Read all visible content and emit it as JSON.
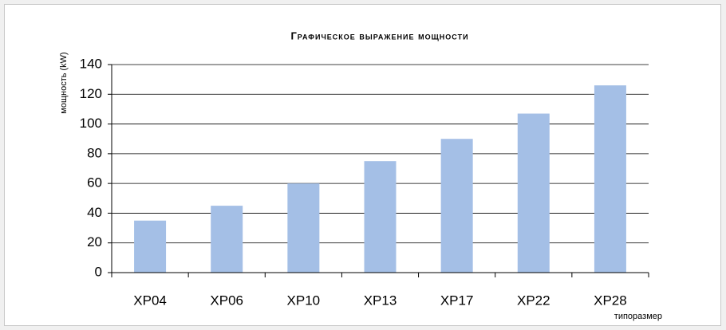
{
  "chart_data": {
    "type": "bar",
    "title": "Графическое выражение мощности",
    "y_label": "мощность (kW)",
    "x_label": "типоразмер",
    "categories": [
      "XP04",
      "XP06",
      "XP10",
      "XP13",
      "XP17",
      "XP22",
      "XP28"
    ],
    "values": [
      35,
      45,
      60,
      75,
      90,
      107,
      126
    ],
    "color": "#a4bfe6",
    "ylim": [
      0,
      140
    ],
    "yticks": [
      0,
      20,
      40,
      60,
      80,
      100,
      120,
      140
    ],
    "grid": true
  }
}
